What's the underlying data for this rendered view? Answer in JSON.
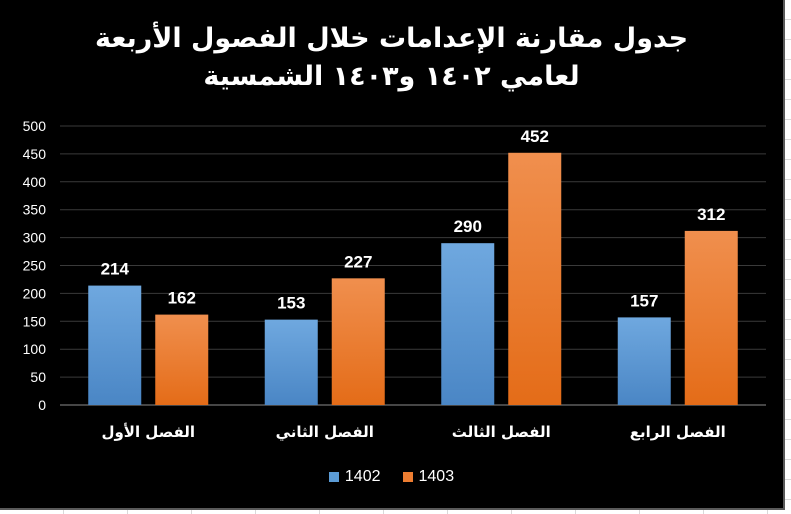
{
  "chart_data": {
    "type": "bar",
    "title_lines": [
      "جدول مقارنة الإعدامات خلال الفصول الأربعة",
      "لعامي ١٤٠٢ و١٤٠٣ الشمسية"
    ],
    "xlabel": "",
    "ylabel": "",
    "categories": [
      "الفصل الأول",
      "الفصل الثاني",
      "الفصل الثالث",
      "الفصل الرابع"
    ],
    "series": [
      {
        "name": "1402",
        "values": [
          214,
          153,
          290,
          157
        ],
        "color": "#5b9bd5"
      },
      {
        "name": "1403",
        "values": [
          162,
          227,
          452,
          312
        ],
        "color": "#ed7d31"
      }
    ],
    "ylim": [
      0,
      500
    ],
    "yticks": [
      0,
      50,
      100,
      150,
      200,
      250,
      300,
      350,
      400,
      450,
      500
    ],
    "grid": true,
    "data_labels": true,
    "legend_position": "bottom"
  },
  "colors": {
    "background": "#000000",
    "text": "#ffffff",
    "gridline": "#3a3a3a"
  }
}
